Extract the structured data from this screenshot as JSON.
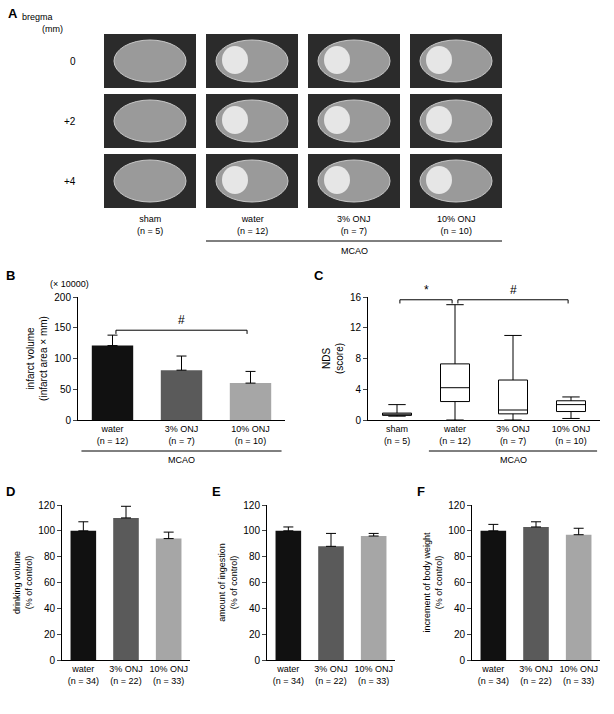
{
  "panel_a": {
    "panel": "A",
    "title": "bregma",
    "unit": "(mm)",
    "rows": [
      "0",
      "+2",
      "+4"
    ],
    "columns": [
      "sham (n = 5)",
      "water (n = 12)",
      "3% ONJ (n = 7)",
      "10% ONJ (n = 10)"
    ],
    "group": {
      "text": "MCAO",
      "columns": [
        "water (n = 12)",
        "3% ONJ (n = 7)",
        "10% ONJ (n = 10)"
      ]
    }
  },
  "chart_data": [
    {
      "panel": "B",
      "type": "bar",
      "y_unit": "(× 10000)",
      "ylabel": "infarct volume (infarct area × mm)",
      "categories": [
        "water (n = 12)",
        "3% ONJ (n = 7)",
        "10% ONJ (n = 10)"
      ],
      "values": [
        121,
        81,
        60
      ],
      "errors": [
        17,
        23,
        19
      ],
      "colors": [
        "#111111",
        "#5a5a5a",
        "#a6a6a6"
      ],
      "ylim": [
        0,
        200
      ],
      "yticks": [
        0,
        50,
        100,
        150,
        200
      ],
      "grid": false,
      "group": {
        "text": "MCAO",
        "categories": [
          "water (n = 12)",
          "3% ONJ (n = 7)",
          "10% ONJ (n = 10)"
        ]
      },
      "annotations": [
        {
          "text": "#",
          "from": "water (n = 12)",
          "to": "10% ONJ (n = 10)"
        }
      ]
    },
    {
      "panel": "C",
      "type": "box",
      "ylabel": "NDS (score)",
      "categories": [
        "sham (n = 5)",
        "water (n = 12)",
        "3% ONJ (n = 7)",
        "10% ONJ (n = 10)"
      ],
      "stats": {
        "min": [
          0.5,
          0,
          0,
          0.2
        ],
        "q1": [
          0.6,
          2.4,
          0.8,
          1.1
        ],
        "median": [
          0.75,
          4.2,
          1.3,
          2.0
        ],
        "q3": [
          0.9,
          7.3,
          5.2,
          2.5
        ],
        "max": [
          2,
          15,
          11,
          3
        ]
      },
      "color": "#000000",
      "ylim": [
        0,
        16
      ],
      "yticks": [
        0,
        4,
        8,
        12,
        16
      ],
      "grid": false,
      "group": {
        "text": "MCAO",
        "categories": [
          "water (n = 12)",
          "3% ONJ (n = 7)",
          "10% ONJ (n = 10)"
        ]
      },
      "annotations": [
        {
          "text": "*",
          "from": "sham (n = 5)",
          "to": "water (n = 12)"
        },
        {
          "text": "#",
          "from": "water (n = 12)",
          "to": "10% ONJ (n = 10)"
        }
      ]
    },
    {
      "panel": "D",
      "type": "bar",
      "ylabel": "drinking volume (% of control)",
      "categories": [
        "water (n = 34)",
        "3% ONJ (n = 22)",
        "10% ONJ (n = 33)"
      ],
      "values": [
        100,
        110,
        94
      ],
      "errors": [
        7,
        9,
        5
      ],
      "colors": [
        "#111111",
        "#5a5a5a",
        "#a6a6a6"
      ],
      "ylim": [
        0,
        120
      ],
      "yticks": [
        0,
        20,
        40,
        60,
        80,
        100,
        120
      ],
      "grid": false
    },
    {
      "panel": "E",
      "type": "bar",
      "ylabel": "amount of ingestion (% of control)",
      "categories": [
        "water (n = 34)",
        "3% ONJ (n = 22)",
        "10% ONJ (n = 33)"
      ],
      "values": [
        100,
        88,
        96
      ],
      "errors": [
        3,
        10,
        2
      ],
      "colors": [
        "#111111",
        "#5a5a5a",
        "#a6a6a6"
      ],
      "ylim": [
        0,
        120
      ],
      "yticks": [
        0,
        20,
        40,
        60,
        80,
        100,
        120
      ],
      "grid": false
    },
    {
      "panel": "F",
      "type": "bar",
      "ylabel": "increment of body weight (% of control)",
      "categories": [
        "water (n = 34)",
        "3% ONJ (n = 22)",
        "10% ONJ (n = 33)"
      ],
      "values": [
        100,
        103,
        97
      ],
      "errors": [
        5,
        4,
        5
      ],
      "colors": [
        "#111111",
        "#5a5a5a",
        "#a6a6a6"
      ],
      "ylim": [
        0,
        120
      ],
      "yticks": [
        0,
        20,
        40,
        60,
        80,
        100,
        120
      ],
      "grid": false
    }
  ]
}
